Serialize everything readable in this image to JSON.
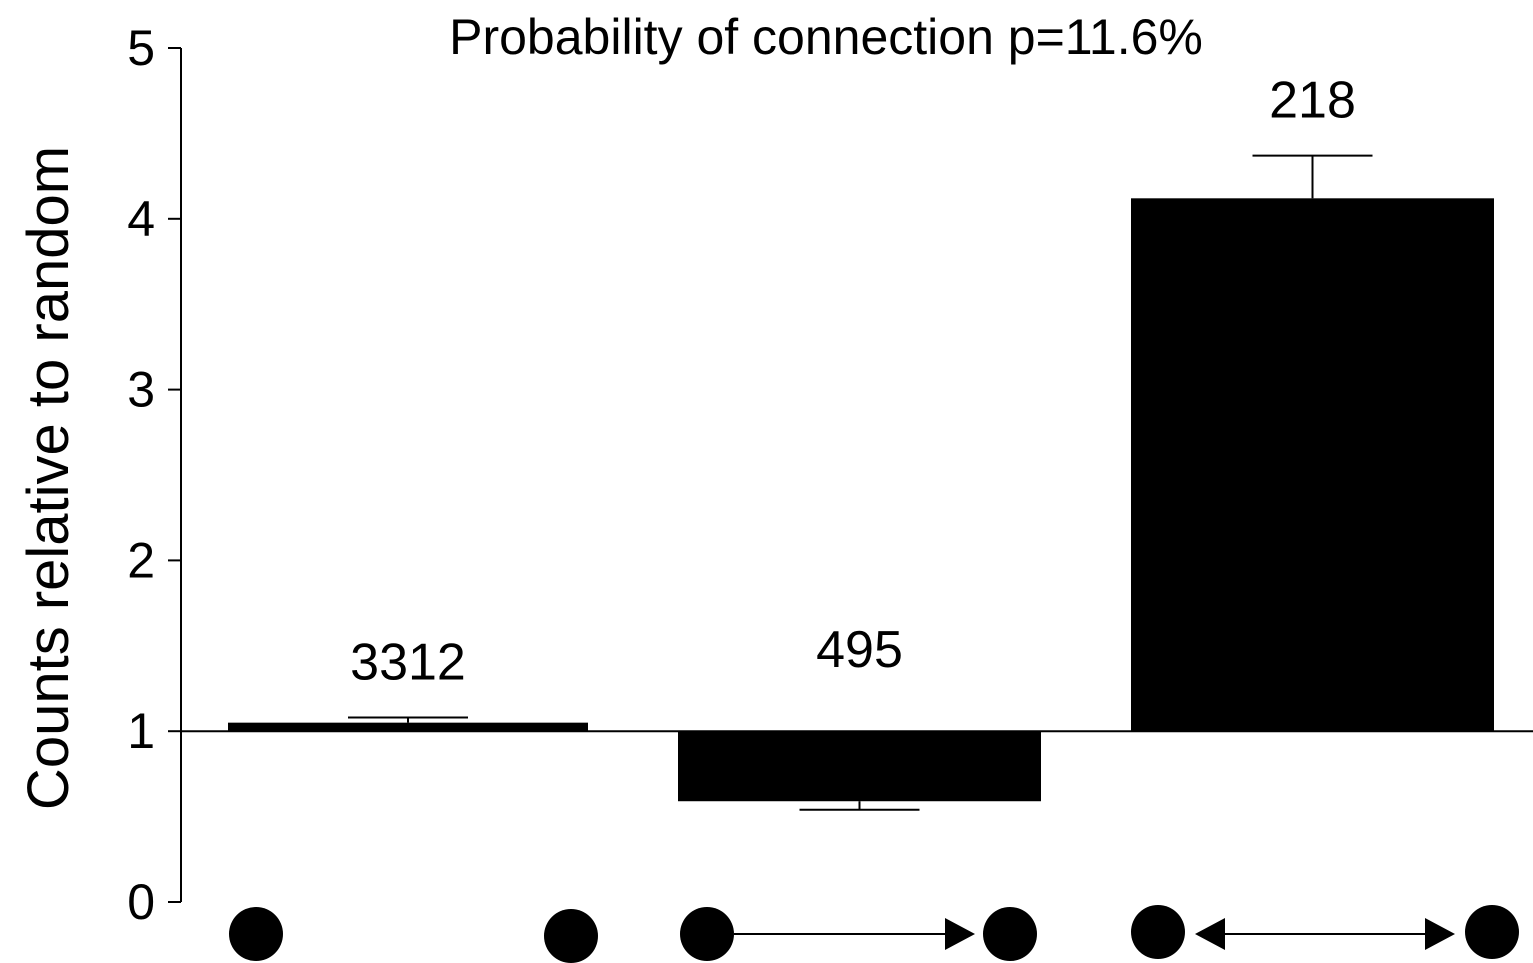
{
  "chart_data": {
    "type": "bar",
    "title": "Probability of connection p=11.6%",
    "xlabel": "",
    "ylabel": "Counts relative to random",
    "ylim": [
      0,
      5
    ],
    "yticks": [
      "0",
      "1",
      "2",
      "3",
      "4",
      "5"
    ],
    "baseline": 1,
    "categories": [
      "unconnected pair",
      "unidirectional connection",
      "bidirectional connection"
    ],
    "values": [
      1.05,
      0.59,
      4.12
    ],
    "error_bars": [
      0.03,
      0.05,
      0.25
    ],
    "data_labels": [
      "3312",
      "495",
      "218"
    ],
    "grid": false,
    "legend": "none",
    "bar_color": "#000000"
  }
}
